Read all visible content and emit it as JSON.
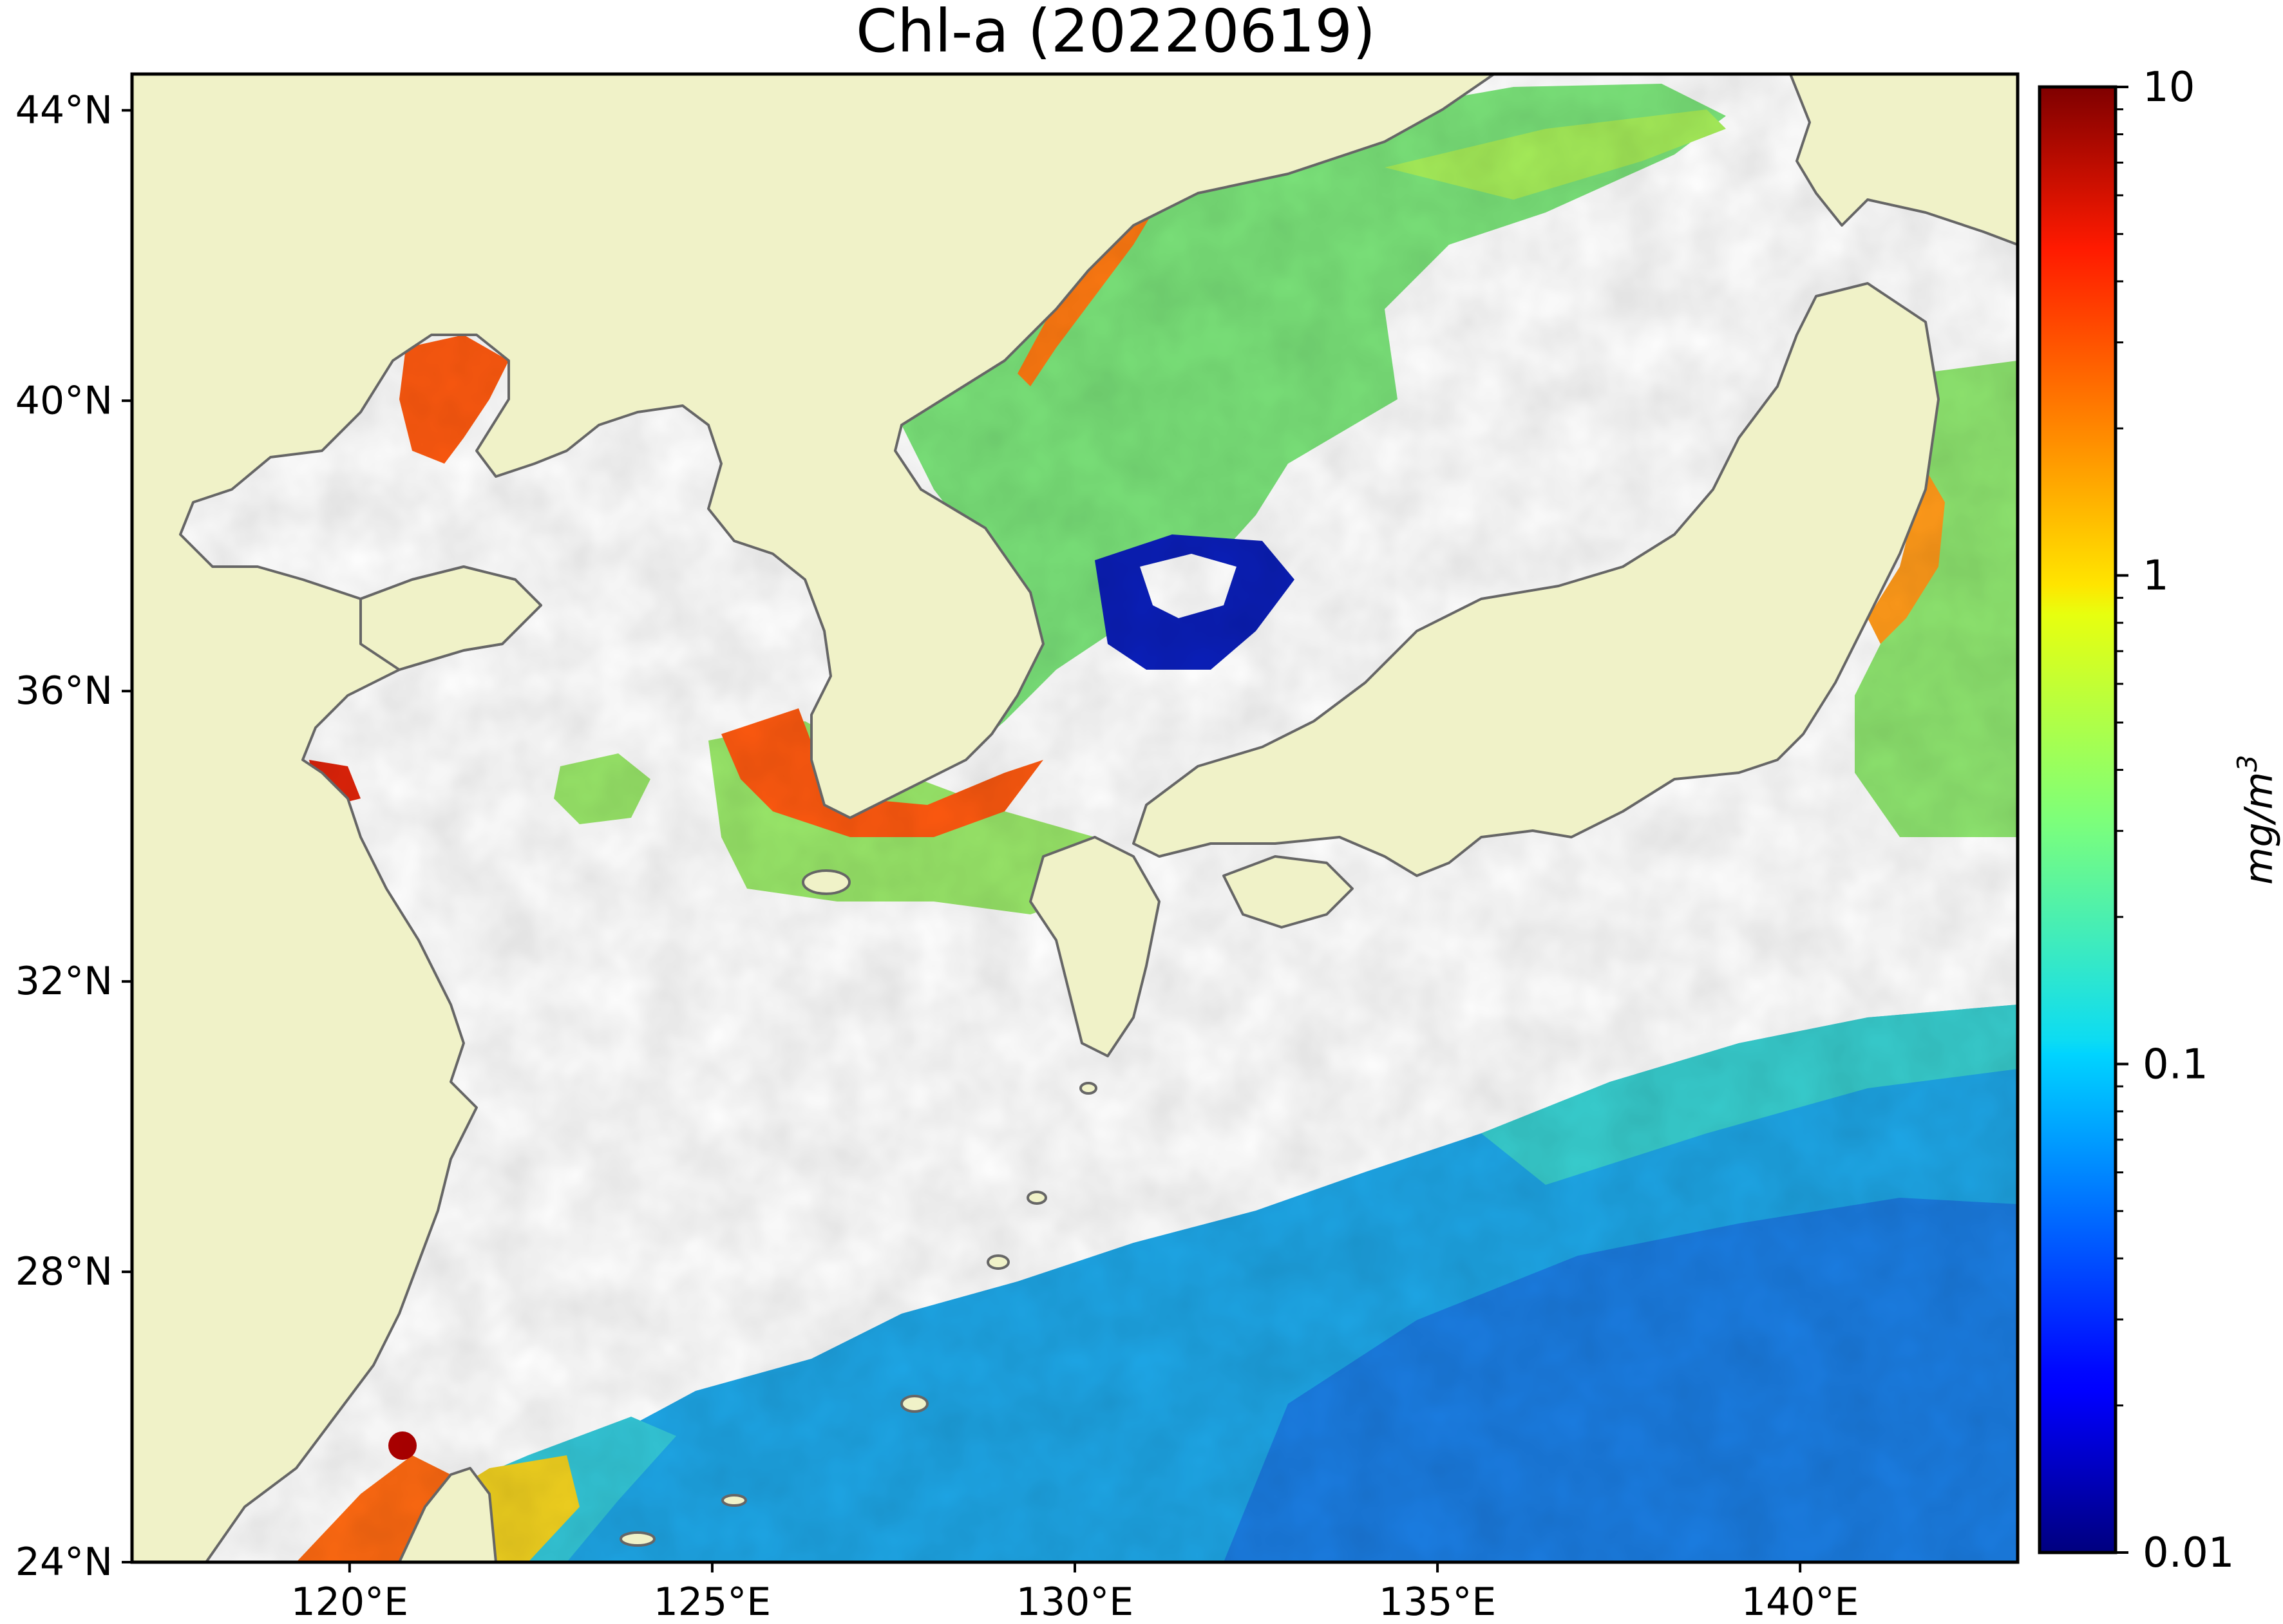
{
  "title": "Chl-a (20220619)",
  "colors": {
    "land": "#f0f2c8",
    "coast": "#666666",
    "invalid": "#ffffff",
    "frame": "#000000"
  },
  "map": {
    "lon_range": [
      117,
      143
    ],
    "lat_range": [
      24,
      44.5
    ],
    "lon_ticks": [
      {
        "value": 120,
        "label": "120°E"
      },
      {
        "value": 125,
        "label": "125°E"
      },
      {
        "value": 130,
        "label": "130°E"
      },
      {
        "value": 135,
        "label": "135°E"
      },
      {
        "value": 140,
        "label": "140°E"
      }
    ],
    "lat_ticks": [
      {
        "value": 44,
        "label": "44°N"
      },
      {
        "value": 40,
        "label": "40°N"
      },
      {
        "value": 36,
        "label": "36°N"
      },
      {
        "value": 32,
        "label": "32°N"
      },
      {
        "value": 28,
        "label": "28°N"
      },
      {
        "value": 24,
        "label": "24°N"
      }
    ]
  },
  "colorbar": {
    "scale": "log",
    "range": [
      0.01,
      10
    ],
    "colormap": "jet",
    "ticks": [
      {
        "value": 10,
        "label": "10"
      },
      {
        "value": 1,
        "label": "1"
      },
      {
        "value": 0.1,
        "label": "0.1"
      },
      {
        "value": 0.01,
        "label": "0.01"
      }
    ],
    "unit_label": "mg/m³"
  }
}
